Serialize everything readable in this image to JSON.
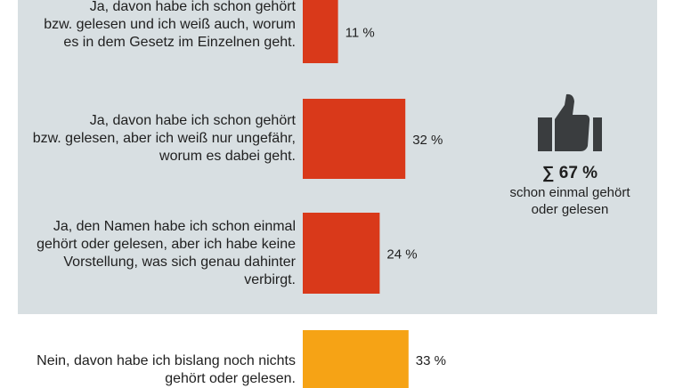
{
  "chart_data": {
    "type": "bar",
    "orientation": "horizontal",
    "categories": [
      "Ja, davon habe ich schon gehört\nbzw. gelesen und ich weiß auch, worum\nes in dem Gesetz im Einzelnen geht.",
      "Ja, davon habe ich schon gehört\nbzw. gelesen, aber ich weiß nur ungefähr,\nworum es dabei geht.",
      "Ja, den Namen habe ich schon einmal\ngehört oder gelesen, aber ich habe keine\nVorstellung, was sich genau dahinter\nverbirgt.",
      "Nein, davon habe ich bislang noch nichts\ngehört oder gelesen."
    ],
    "values": [
      11,
      32,
      24,
      33
    ],
    "value_labels": [
      "11 %",
      "32 %",
      "24 %",
      "33 %"
    ],
    "colors": [
      "#d9391a",
      "#d9391a",
      "#d9391a",
      "#f6a315"
    ],
    "xlim": [
      0,
      100
    ],
    "grid": false
  },
  "summary": {
    "icon": "thumbs-up-icon",
    "value": "∑ 67  %",
    "caption": "schon einmal gehört\noder gelesen"
  },
  "colors": {
    "panel": "#d8dfe2",
    "icon": "#3a3d3f"
  }
}
